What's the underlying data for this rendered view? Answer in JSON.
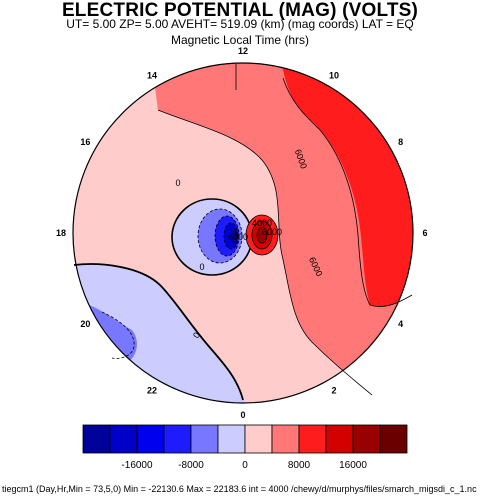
{
  "title": "ELECTRIC POTENTIAL (MAG) (VOLTS)",
  "subtitle": "UT=  5.00 ZP=  5.00 AVEHT= 519.09 (km) (mag coords) LAT = EQ",
  "xlabel": "Magnetic Local Time (hrs)",
  "footer": "tiegcm1  (Day,Hr,Min = 73,5,0) Min = -22130.6  Max = 22183.6  int = 4000 /chewy/d/murphys/files/smarch_migsdi_c_1.nc",
  "chart_data": {
    "type": "heatmap",
    "projection": "polar",
    "colors": {
      "pos1": "#ffcccc",
      "pos2": "#ff7777",
      "pos3": "#ff1c1c",
      "pos4": "#d40000",
      "pos5": "#990000",
      "neg1": "#ccccff",
      "neg2": "#7777ff",
      "neg3": "#1c1cff",
      "neg4": "#0000d4"
    },
    "clock_ticks": [
      {
        "label": "12",
        "mlt": 12
      },
      {
        "label": "10",
        "mlt": 10
      },
      {
        "label": "8",
        "mlt": 8
      },
      {
        "label": "6",
        "mlt": 6
      },
      {
        "label": "4",
        "mlt": 4
      },
      {
        "label": "2",
        "mlt": 2
      },
      {
        "label": "0",
        "mlt": 0
      },
      {
        "label": "22",
        "mlt": 22
      },
      {
        "label": "20",
        "mlt": 20
      },
      {
        "label": "18",
        "mlt": 18
      },
      {
        "label": "16",
        "mlt": 16
      },
      {
        "label": "14",
        "mlt": 14
      }
    ],
    "contour_labels": [
      {
        "text": "0"
      },
      {
        "text": "0"
      },
      {
        "text": "0"
      },
      {
        "text": "6000"
      },
      {
        "text": "6000"
      },
      {
        "text": "6000"
      },
      {
        "text": "6000"
      },
      {
        "text": "4000"
      }
    ],
    "colorbar": {
      "levels": [
        -20000,
        -16000,
        -12000,
        -8000,
        -4000,
        0,
        4000,
        8000,
        12000,
        16000,
        20000
      ],
      "colors": [
        "#00009a",
        "#0000c8",
        "#0000ee",
        "#1c1cff",
        "#7777ff",
        "#ccccff",
        "#ffcccc",
        "#ff7777",
        "#ff1c1c",
        "#d40000",
        "#990000",
        "#6a0000"
      ],
      "tick_labels": [
        "-16000",
        "-8000",
        "0",
        "8000",
        "16000"
      ],
      "tick_values": [
        -16000,
        -8000,
        0,
        8000,
        16000
      ]
    },
    "min": -22130.6,
    "max": 22183.6,
    "interval": 4000
  }
}
